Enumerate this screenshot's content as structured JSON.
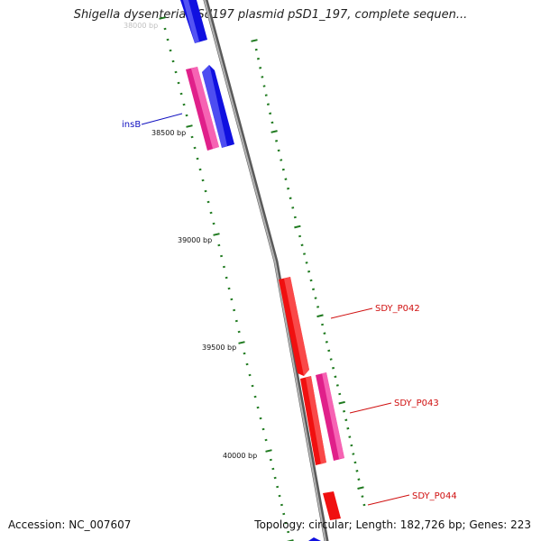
{
  "title": "Shigella dysenteriae Sd197 plasmid pSD1_197, complete sequen...",
  "footer": {
    "accession": "Accession: NC_007607",
    "summary": "Topology: circular; Length: 182,726 bp; Genes: 223"
  },
  "colors": {
    "backbone": "#8a8a8a",
    "tick": "#1f7a1f",
    "blue_gene": "#1010e0",
    "pink_gene": "#e0208a",
    "red_gene": "#f01010",
    "label_blue": "#1010c0",
    "label_red": "#d01010"
  },
  "scale_labels": [
    {
      "text": "38000 bp",
      "faded": true
    },
    {
      "text": "38500 bp",
      "faded": false
    },
    {
      "text": "39000 bp",
      "faded": false
    },
    {
      "text": "39500 bp",
      "faded": false
    },
    {
      "text": "40000 bp",
      "faded": false
    }
  ],
  "gene_labels": [
    {
      "text": "insB",
      "color": "blue"
    },
    {
      "text": "SDY_P042",
      "color": "red"
    },
    {
      "text": "SDY_P043",
      "color": "red"
    },
    {
      "text": "SDY_P044",
      "color": "red"
    }
  ]
}
